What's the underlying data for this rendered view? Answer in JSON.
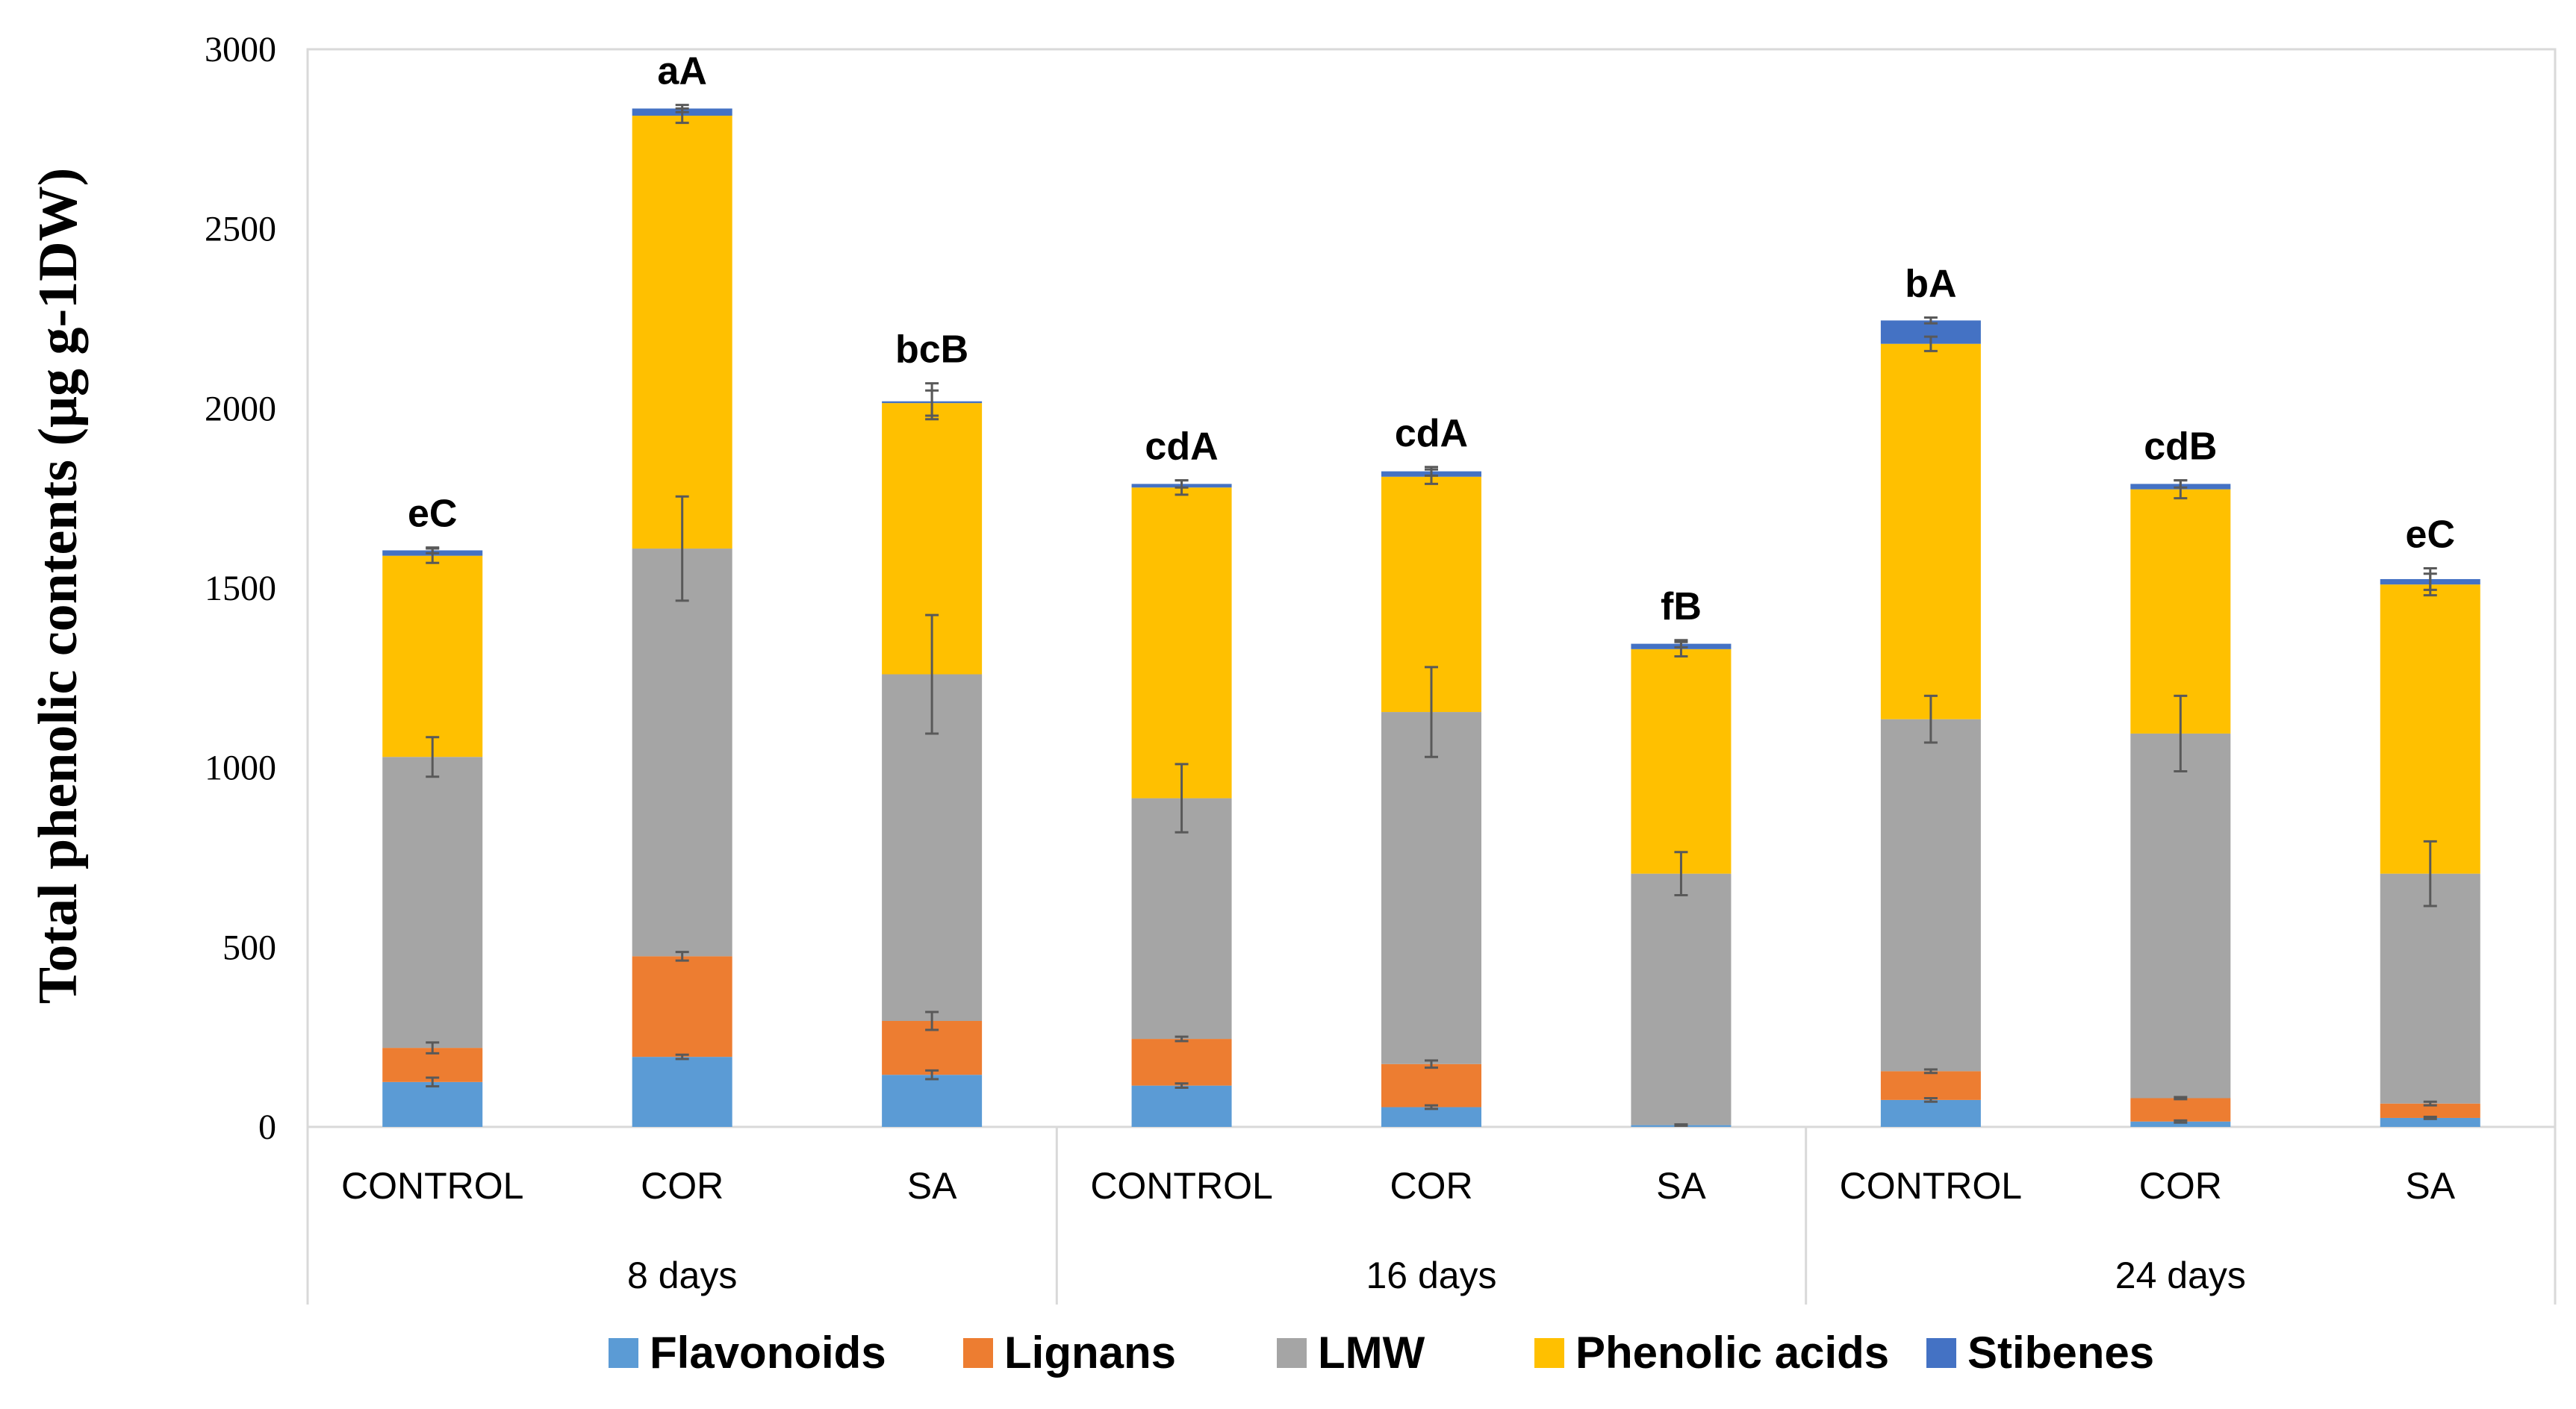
{
  "chart_data": {
    "type": "stacked-bar",
    "ylabel": "Total phenolic contents (μg g-1DW)",
    "ylim": [
      0,
      3000
    ],
    "yticks": [
      0,
      500,
      1000,
      1500,
      2000,
      2500,
      3000
    ],
    "groups": [
      "8 days",
      "16 days",
      "24 days"
    ],
    "categories": [
      "CONTROL",
      "COR",
      "SA",
      "CONTROL",
      "COR",
      "SA",
      "CONTROL",
      "COR",
      "SA"
    ],
    "series": [
      {
        "name": "Flavonoids",
        "color": "#5B9BD5",
        "values": [
          125,
          195,
          145,
          115,
          55,
          5,
          75,
          15,
          25
        ]
      },
      {
        "name": "Lignans",
        "color": "#ED7D31",
        "values": [
          95,
          280,
          150,
          130,
          120,
          0,
          80,
          65,
          40
        ]
      },
      {
        "name": "LMW",
        "color": "#A5A5A5",
        "values": [
          810,
          1135,
          965,
          670,
          980,
          700,
          980,
          1015,
          640
        ]
      },
      {
        "name": "Phenolic acids",
        "color": "#FFC000",
        "values": [
          560,
          1205,
          755,
          865,
          655,
          625,
          1045,
          680,
          805
        ]
      },
      {
        "name": "Stibenes",
        "color": "#4472C4",
        "values": [
          15,
          20,
          5,
          10,
          15,
          15,
          65,
          15,
          15
        ]
      }
    ],
    "error_bars": {
      "Flavonoids": [
        12,
        6,
        12,
        6,
        5,
        2,
        5,
        3,
        3
      ],
      "Lignans": [
        15,
        12,
        25,
        6,
        10,
        0,
        5,
        3,
        5
      ],
      "LMW": [
        55,
        145,
        165,
        95,
        125,
        60,
        65,
        105,
        90
      ],
      "Phenolic acids": [
        20,
        20,
        35,
        20,
        20,
        20,
        20,
        25,
        30
      ],
      "Stibenes": [
        8,
        10,
        50,
        10,
        12,
        10,
        8,
        10,
        30
      ]
    },
    "annotations": [
      "eC",
      "aA",
      "bcB",
      "cdA",
      "cdA",
      "fB",
      "bA",
      "cdB",
      "eC"
    ],
    "legend_position": "bottom"
  }
}
